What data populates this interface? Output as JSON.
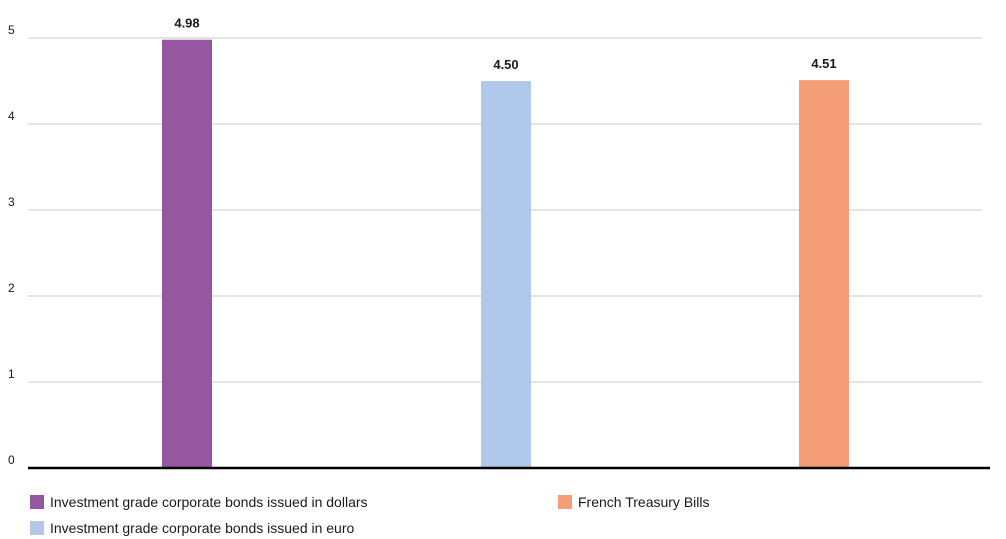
{
  "chart_data": {
    "type": "bar",
    "categories": [
      "Investment grade corporate bonds issued in dollars",
      "Investment grade corporate bonds issued in euro",
      "French Treasury Bills"
    ],
    "values": [
      4.98,
      4.5,
      4.51
    ],
    "value_labels": [
      "4.98",
      "4.50",
      "4.51"
    ],
    "colors": [
      "#95579f",
      "#b0c9ea",
      "#f49d76"
    ],
    "ylim": [
      0,
      5
    ],
    "yticks": [
      "0",
      "1",
      "2",
      "3",
      "4",
      "5"
    ],
    "grid": true,
    "legend": {
      "placement": "bottom",
      "items": [
        {
          "label": "Investment grade corporate bonds issued in dollars",
          "color": "#95579f"
        },
        {
          "label": "French Treasury Bills",
          "color": "#f49d76"
        },
        {
          "label": "Investment grade corporate bonds issued in euro",
          "color": "#b0c9ea"
        }
      ]
    }
  }
}
